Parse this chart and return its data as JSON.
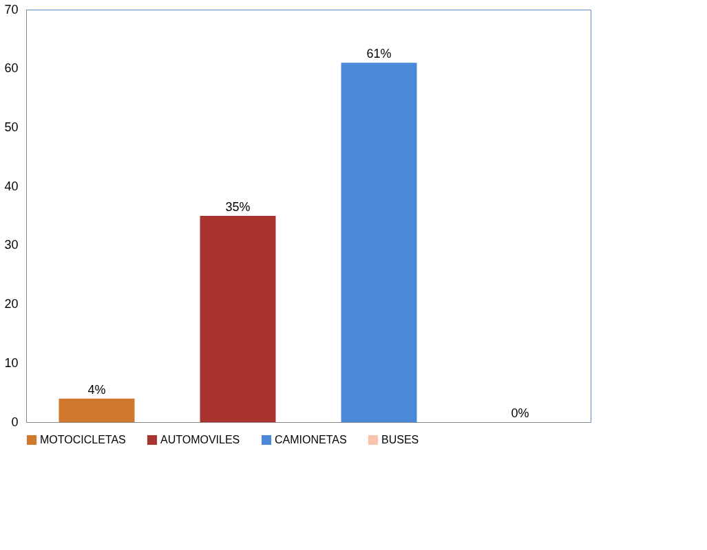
{
  "chart_data": {
    "type": "bar",
    "categories": [
      null,
      null,
      null,
      null
    ],
    "series": [
      {
        "name": "MOTOCICLETAS",
        "color": "#d0782e",
        "values": [
          4,
          null,
          null,
          null
        ],
        "value_labels": [
          "4%",
          null,
          null,
          null
        ]
      },
      {
        "name": "AUTOMOVILES",
        "color": "#a8332f",
        "values": [
          null,
          35,
          null,
          null
        ],
        "value_labels": [
          null,
          "35%",
          null,
          null
        ]
      },
      {
        "name": "CAMIONETAS",
        "color": "#4a88d8",
        "values": [
          null,
          null,
          61,
          null
        ],
        "value_labels": [
          null,
          null,
          "61%",
          null
        ]
      },
      {
        "name": "BUSES",
        "color": "#f8c4aa",
        "values": [
          null,
          null,
          null,
          0
        ],
        "value_labels": [
          null,
          null,
          null,
          "0%"
        ]
      }
    ],
    "ylim": [
      0,
      70
    ],
    "yticks": [
      0,
      10,
      20,
      30,
      40,
      50,
      60,
      70
    ],
    "grid": false,
    "legend": "bottom",
    "tick_labels": "y"
  }
}
